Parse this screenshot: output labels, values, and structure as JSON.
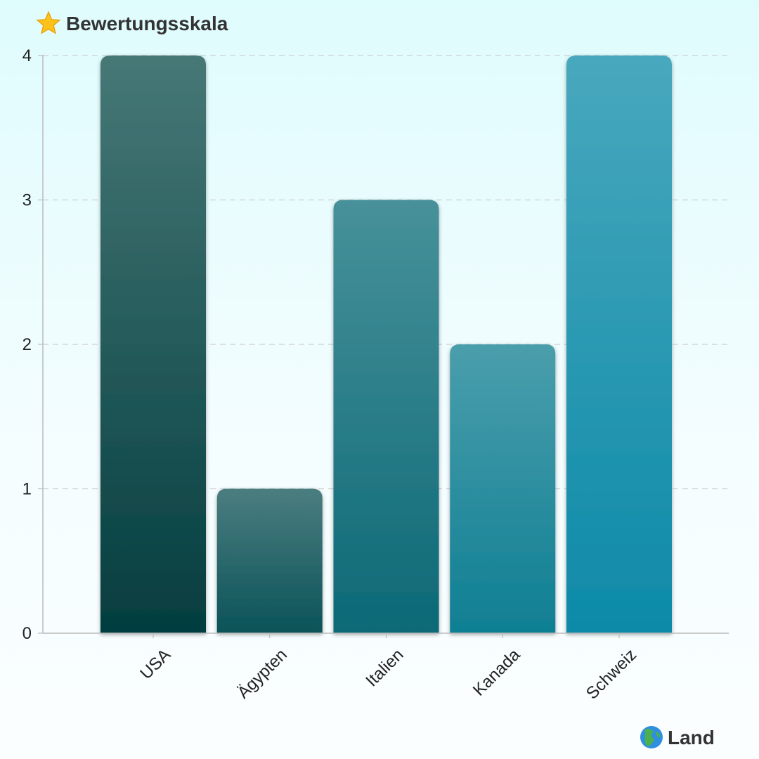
{
  "chart_data": {
    "type": "bar",
    "ylabel": "Bewertungsskala",
    "ylabel_icon": "star-icon",
    "xlabel": "Land",
    "xlabel_icon": "globe-icon",
    "categories": [
      "USA",
      "Ägypten",
      "Italien",
      "Kanada",
      "Schweiz"
    ],
    "values": [
      4,
      1,
      3,
      2,
      4
    ],
    "ylim": [
      0,
      4
    ],
    "yticks": [
      0,
      1,
      2,
      3,
      4
    ],
    "grid": true,
    "colors": [
      [
        "#467876",
        "#043d3f"
      ],
      [
        "#4b7d80",
        "#0a5358"
      ],
      [
        "#47919a",
        "#0c6976"
      ],
      [
        "#4a9eac",
        "#0f7f93"
      ],
      [
        "#48a8bd",
        "#0d8aa8"
      ]
    ]
  }
}
